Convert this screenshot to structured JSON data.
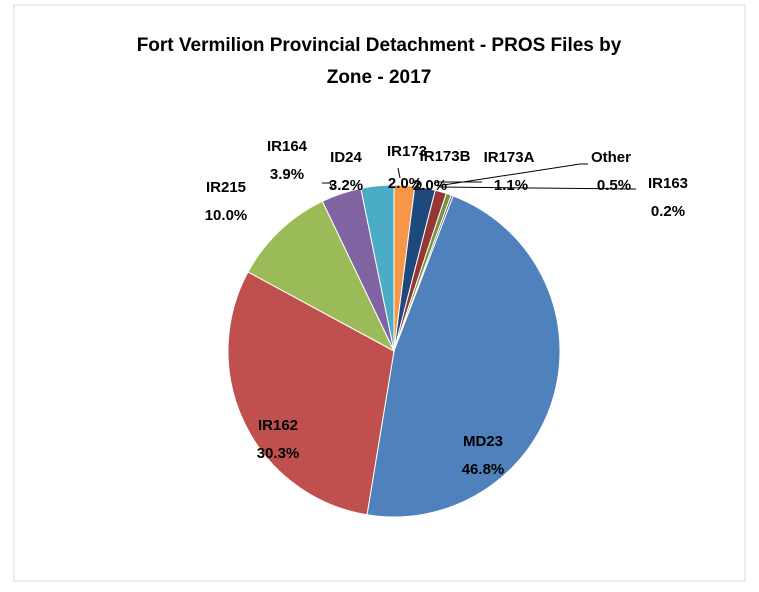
{
  "chart_data": {
    "type": "pie",
    "title": "Fort Vermilion Provincial Detachment - PROS Files by Zone - 2017",
    "categories": [
      "IR173",
      "IR173B",
      "IR173A",
      "Other",
      "IR163",
      "MD23",
      "IR162",
      "IR215",
      "IR164",
      "ID24"
    ],
    "values": [
      2.0,
      2.0,
      1.1,
      0.5,
      0.2,
      46.8,
      30.3,
      10.0,
      3.9,
      3.2
    ],
    "value_labels": [
      "2.0%",
      "2.0%",
      "1.1%",
      "0.5%",
      "0.2%",
      "46.8%",
      "30.3%",
      "10.0%",
      "3.9%",
      "3.2%"
    ],
    "colors": [
      "#f79646",
      "#1f497d",
      "#953735",
      "#77933c",
      "#604a7b",
      "#4f81bd",
      "#c0504d",
      "#9bbb59",
      "#8064a2",
      "#4bacc6"
    ]
  }
}
